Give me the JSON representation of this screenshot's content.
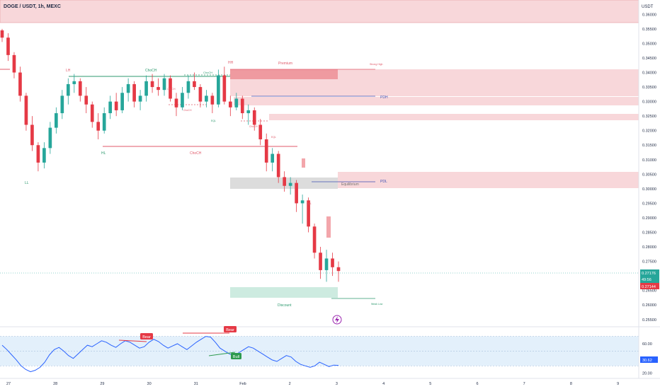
{
  "header": {
    "symbol_title": "DOGE / USDT, 1h, MEXC"
  },
  "chart_data": {
    "type": "candlestick",
    "currency": "USDT",
    "price_axis": {
      "ticks": [
        "0.36000",
        "0.35500",
        "0.35000",
        "0.34500",
        "0.34000",
        "0.33500",
        "0.33000",
        "0.32500",
        "0.32000",
        "0.31500",
        "0.31000",
        "0.30500",
        "0.30000",
        "0.29500",
        "0.29000",
        "0.28500",
        "0.28000",
        "0.27500",
        "0.27000",
        "0.26500",
        "0.26000",
        "0.25500"
      ],
      "range": [
        0.253,
        0.363
      ]
    },
    "last_price": {
      "value": "0.27176",
      "countdown": "49:56",
      "secondary": "0.27144"
    },
    "time_axis": [
      "27",
      "28",
      "29",
      "30",
      "31",
      "Feb",
      "2",
      "3",
      "4",
      "5",
      "6",
      "7",
      "8",
      "9"
    ],
    "candles_1h_approx": [
      [
        0.3545,
        0.355,
        0.3505,
        0.352
      ],
      [
        0.352,
        0.3535,
        0.344,
        0.346
      ],
      [
        0.346,
        0.347,
        0.338,
        0.34
      ],
      [
        0.34,
        0.342,
        0.33,
        0.332
      ],
      [
        0.332,
        0.333,
        0.32,
        0.322
      ],
      [
        0.322,
        0.325,
        0.313,
        0.315
      ],
      [
        0.315,
        0.316,
        0.306,
        0.309
      ],
      [
        0.309,
        0.316,
        0.307,
        0.314
      ],
      [
        0.314,
        0.323,
        0.312,
        0.321
      ],
      [
        0.321,
        0.328,
        0.319,
        0.326
      ],
      [
        0.326,
        0.334,
        0.324,
        0.332
      ],
      [
        0.332,
        0.338,
        0.329,
        0.336
      ],
      [
        0.336,
        0.3395,
        0.333,
        0.337
      ],
      [
        0.337,
        0.338,
        0.33,
        0.332
      ],
      [
        0.332,
        0.335,
        0.326,
        0.329
      ],
      [
        0.329,
        0.33,
        0.321,
        0.323
      ],
      [
        0.323,
        0.326,
        0.317,
        0.32
      ],
      [
        0.32,
        0.328,
        0.319,
        0.326
      ],
      [
        0.326,
        0.332,
        0.324,
        0.33
      ],
      [
        0.33,
        0.333,
        0.325,
        0.327
      ],
      [
        0.327,
        0.335,
        0.326,
        0.333
      ],
      [
        0.333,
        0.338,
        0.33,
        0.336
      ],
      [
        0.336,
        0.337,
        0.328,
        0.33
      ],
      [
        0.33,
        0.334,
        0.327,
        0.332
      ],
      [
        0.332,
        0.339,
        0.33,
        0.337
      ],
      [
        0.337,
        0.3395,
        0.333,
        0.335
      ],
      [
        0.335,
        0.338,
        0.332,
        0.334
      ],
      [
        0.334,
        0.3395,
        0.332,
        0.338
      ],
      [
        0.338,
        0.339,
        0.33,
        0.331
      ],
      [
        0.331,
        0.333,
        0.325,
        0.328
      ],
      [
        0.328,
        0.335,
        0.327,
        0.333
      ],
      [
        0.333,
        0.339,
        0.331,
        0.337
      ],
      [
        0.337,
        0.34,
        0.334,
        0.335
      ],
      [
        0.335,
        0.336,
        0.328,
        0.33
      ],
      [
        0.33,
        0.334,
        0.328,
        0.332
      ],
      [
        0.332,
        0.333,
        0.326,
        0.329
      ],
      [
        0.329,
        0.341,
        0.328,
        0.339
      ],
      [
        0.339,
        0.342,
        0.329,
        0.33
      ],
      [
        0.33,
        0.332,
        0.325,
        0.328
      ],
      [
        0.328,
        0.333,
        0.327,
        0.331
      ],
      [
        0.331,
        0.332,
        0.324,
        0.326
      ],
      [
        0.326,
        0.329,
        0.322,
        0.327
      ],
      [
        0.327,
        0.328,
        0.32,
        0.322
      ],
      [
        0.322,
        0.324,
        0.315,
        0.317
      ],
      [
        0.317,
        0.319,
        0.306,
        0.309
      ],
      [
        0.309,
        0.314,
        0.306,
        0.312
      ],
      [
        0.312,
        0.313,
        0.302,
        0.304
      ],
      [
        0.304,
        0.306,
        0.299,
        0.301
      ],
      [
        0.301,
        0.304,
        0.298,
        0.302
      ],
      [
        0.302,
        0.303,
        0.292,
        0.295
      ],
      [
        0.295,
        0.298,
        0.288,
        0.296
      ],
      [
        0.296,
        0.297,
        0.285,
        0.287
      ],
      [
        0.287,
        0.288,
        0.276,
        0.278
      ],
      [
        0.278,
        0.28,
        0.269,
        0.272
      ],
      [
        0.272,
        0.279,
        0.268,
        0.276
      ],
      [
        0.276,
        0.278,
        0.27,
        0.273
      ],
      [
        0.273,
        0.275,
        0.268,
        0.2717
      ]
    ],
    "annotations": {
      "structure_labels": [
        "LH",
        "HH",
        "HL",
        "LL",
        "ChoCH",
        "ChoCH",
        "ChoCH",
        "Premium",
        "Discount",
        "Equilibrium"
      ],
      "small_labels": [
        "EQL",
        "EQL",
        "EQL",
        "ChoCH",
        "ChoCH",
        "ChoCH",
        "Strong High",
        "Weak Low"
      ],
      "levels": [
        "PDH",
        "PDL"
      ]
    },
    "rsi": {
      "ticks": [
        "60.00",
        "40.00",
        "20.00"
      ],
      "range": [
        13,
        83
      ],
      "band": [
        30,
        70
      ],
      "midline": 50,
      "current_value": "30.62",
      "divergence_labels": [
        "Bear",
        "Bear",
        "Bull"
      ],
      "values_approx": [
        58,
        52,
        45,
        38,
        30,
        25,
        22,
        24,
        28,
        35,
        45,
        52,
        55,
        50,
        44,
        40,
        46,
        52,
        58,
        56,
        60,
        64,
        62,
        58,
        55,
        60,
        64,
        62,
        58,
        54,
        56,
        62,
        66,
        63,
        58,
        54,
        57,
        60,
        56,
        52,
        57,
        62,
        66,
        70,
        69,
        62,
        54,
        50,
        46,
        44,
        48,
        52,
        56,
        54,
        50,
        46,
        42,
        38,
        36,
        40,
        44,
        42,
        36,
        32,
        30,
        28,
        30,
        35,
        32,
        29,
        31,
        30.62
      ]
    }
  }
}
